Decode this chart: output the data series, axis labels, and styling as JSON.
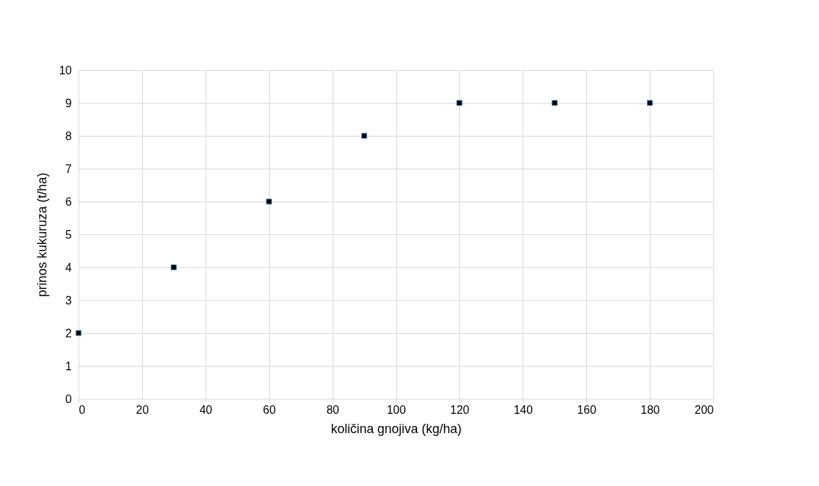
{
  "chart_data": {
    "type": "scatter",
    "xlabel": "količina gnojiva (kg/ha)",
    "ylabel": "prinos kukuruza (t/ha)",
    "x": [
      0,
      30,
      60,
      90,
      120,
      150,
      180
    ],
    "series": [
      {
        "color": "#000000",
        "values": [
          2,
          4,
          6,
          8,
          9,
          9,
          9
        ]
      }
    ],
    "xlim": [
      0,
      200
    ],
    "xticks": [
      0,
      20,
      40,
      60,
      80,
      100,
      120,
      140,
      160,
      180,
      200
    ],
    "ylim": [
      0,
      10
    ],
    "yticks": [
      0,
      1,
      2,
      3,
      4,
      5,
      6,
      7,
      8,
      9,
      10
    ],
    "grid": true,
    "marker": "square"
  }
}
